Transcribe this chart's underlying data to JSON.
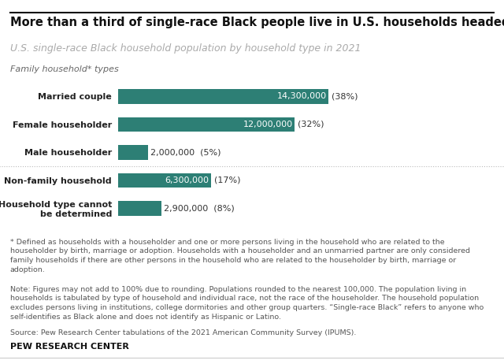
{
  "title": "More than a third of single-race Black people live in U.S. households headed by married couples",
  "subtitle": "U.S. single-race Black household population by household type in 2021",
  "section_label": "Family household* types",
  "categories": [
    "Married couple",
    "Female householder",
    "Male householder",
    "Non-family household",
    "Household type cannot\nbe determined"
  ],
  "values": [
    14300000,
    12000000,
    2000000,
    6300000,
    2900000
  ],
  "percentages": [
    "(38%)",
    "(32%)",
    "(5%)",
    "(17%)",
    "(8%)"
  ],
  "value_labels": [
    "14,300,000",
    "12,000,000",
    "2,000,000",
    "6,300,000",
    "2,900,000"
  ],
  "bar_color": "#2d7f75",
  "text_color_inside": "#ffffff",
  "text_color_outside": "#333333",
  "bg_color": "#ffffff",
  "max_value": 15000000,
  "inside_label_threshold": 5000000,
  "footnote_star": "* Defined as households with a householder and one or more persons living in the household who are related to the\nhouseholder by birth, marriage or adoption. Households with a householder and an unmarried partner are only considered\nfamily households if there are other persons in the household who are related to the householder by birth, marriage or\nadoption.",
  "note": "Note: Figures may not add to 100% due to rounding. Populations rounded to the nearest 100,000. The population living in\nhouseholds is tabulated by type of household and individual race, not the race of the householder. The household population\nexcludes persons living in institutions, college dormitories and other group quarters. “Single-race Black” refers to anyone who\nself-identifies as Black alone and does not identify as Hispanic or Latino.",
  "source": "Source: Pew Research Center tabulations of the 2021 American Community Survey (IPUMS).",
  "branding": "PEW RESEARCH CENTER",
  "title_fontsize": 10.5,
  "subtitle_fontsize": 9,
  "section_fontsize": 8,
  "label_fontsize": 8,
  "bar_label_fontsize": 8,
  "footnote_fontsize": 6.8,
  "branding_fontsize": 8
}
